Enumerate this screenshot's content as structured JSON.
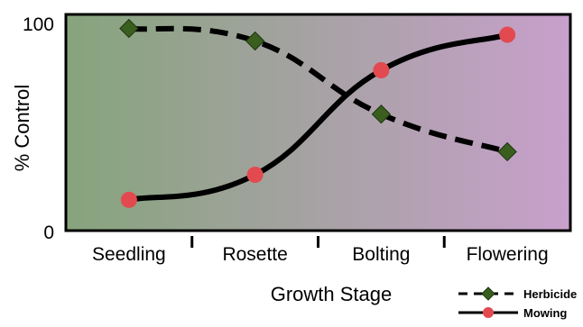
{
  "chart_data": {
    "type": "line",
    "categories": [
      "Seedling",
      "Rosette",
      "Bolting",
      "Flowering"
    ],
    "series": [
      {
        "name": "Herbicide",
        "values": [
          95,
          89,
          54,
          36
        ],
        "style": "dashed",
        "marker": "diamond",
        "marker_color": "#3a5e1e"
      },
      {
        "name": "Mowing",
        "values": [
          13,
          25,
          75,
          92
        ],
        "style": "solid",
        "marker": "circle",
        "marker_color": "#e24a4f"
      }
    ],
    "xlabel": "Growth Stage",
    "ylabel": "% Control",
    "ylim": [
      0,
      100
    ],
    "yticks": [
      "0",
      "100"
    ],
    "legend_position": "bottom-right",
    "grid": false,
    "background_gradient": [
      "#86a47c",
      "#c8a0cc"
    ]
  }
}
